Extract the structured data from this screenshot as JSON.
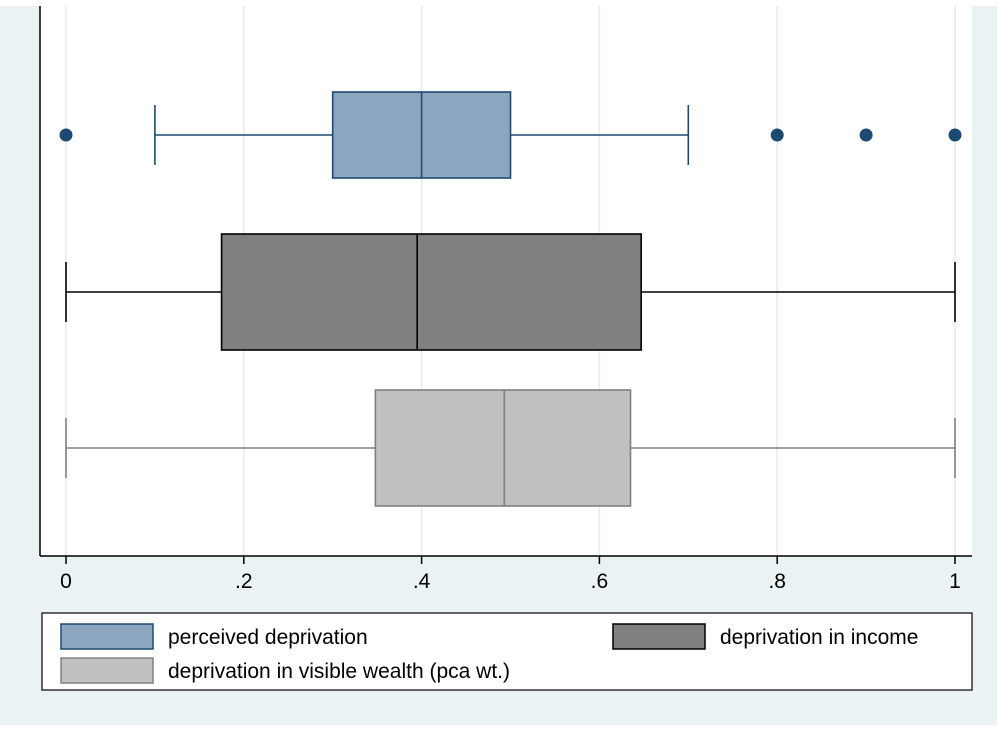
{
  "chart_data": {
    "type": "box",
    "orientation": "horizontal",
    "title": "",
    "xlabel": "",
    "ylabel": "",
    "xlim": [
      0,
      1
    ],
    "x_ticks": [
      {
        "value": 0,
        "label": "0"
      },
      {
        "value": 0.2,
        "label": ".2"
      },
      {
        "value": 0.4,
        "label": ".4"
      },
      {
        "value": 0.6,
        "label": ".6"
      },
      {
        "value": 0.8,
        "label": ".8"
      },
      {
        "value": 1,
        "label": "1"
      }
    ],
    "grid": true,
    "legend_position": "bottom",
    "series": [
      {
        "name": "perceived deprivation",
        "color": "#8da6bf",
        "stroke": "#1d4a72",
        "whisker_low": 0.1,
        "q1": 0.3,
        "median": 0.4,
        "q3": 0.5,
        "whisker_high": 0.7,
        "outliers": [
          0,
          0.8,
          0.9,
          1
        ]
      },
      {
        "name": "deprivation in income",
        "color": "#808080",
        "stroke": "#000000",
        "whisker_low": 0,
        "q1": 0.175,
        "median": 0.395,
        "q3": 0.647,
        "whisker_high": 1,
        "outliers": []
      },
      {
        "name": "deprivation in visible wealth (pca wt.)",
        "color": "#c0c0c0",
        "stroke": "#808080",
        "whisker_low": 0,
        "q1": 0.348,
        "median": 0.493,
        "q3": 0.635,
        "whisker_high": 1,
        "outliers": []
      }
    ]
  },
  "colors": {
    "background": "#eaf2f3",
    "plot_area": "#ffffff",
    "grid": "#e3ecef"
  }
}
